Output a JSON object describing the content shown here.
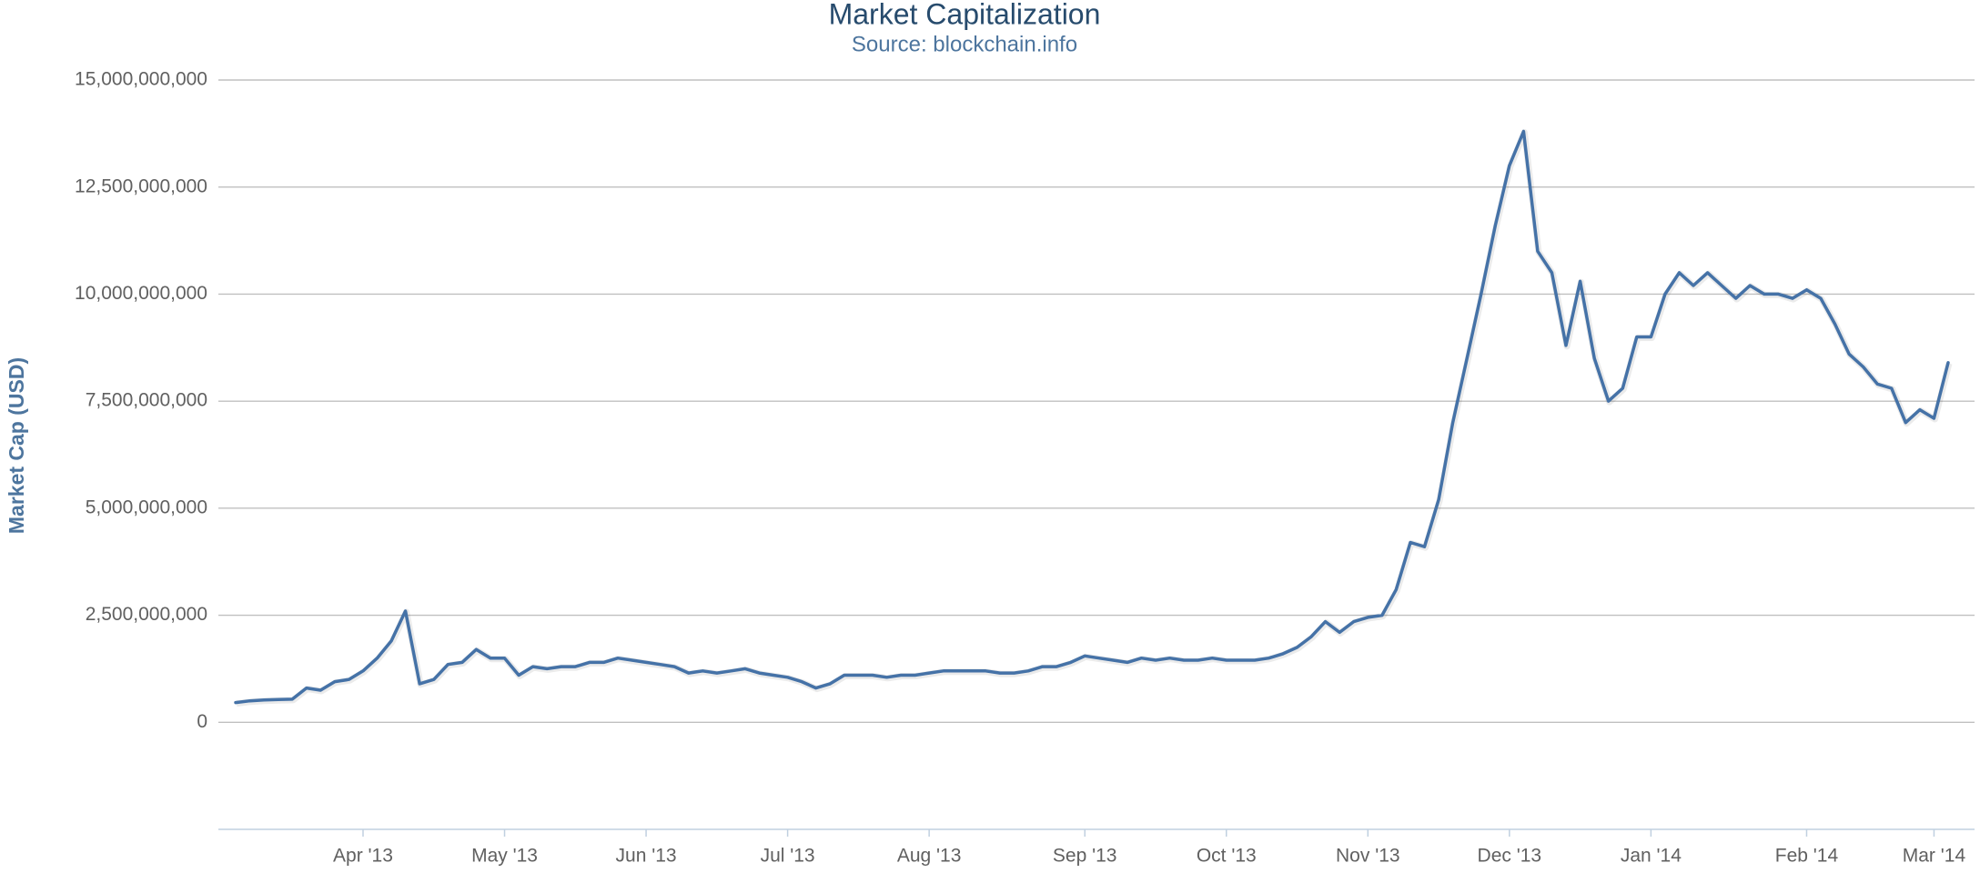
{
  "chart_data": {
    "type": "line",
    "title": "Market Capitalization",
    "subtitle": "Source: blockchain.info",
    "y_label": "Market Cap (USD)",
    "color": "#4572a7",
    "grid": true,
    "ylim": [
      -2500000000,
      15000000000
    ],
    "yticks": [
      0,
      {
        "value": 2500000000,
        "label": "2,500,000,000"
      },
      {
        "value": 5000000000,
        "label": "5,000,000,000"
      },
      {
        "value": 7500000000,
        "label": "7,500,000,000"
      },
      {
        "value": 10000000000,
        "label": "10,000,000,000"
      },
      {
        "value": 12500000000,
        "label": "12,500,000,000"
      },
      {
        "value": 15000000000,
        "label": "15,000,000,000"
      }
    ],
    "categories": [
      null,
      null,
      null,
      null,
      null,
      null,
      null,
      null,
      null,
      "Apr '13",
      null,
      null,
      null,
      null,
      null,
      null,
      null,
      null,
      null,
      "May '13",
      null,
      null,
      null,
      null,
      null,
      null,
      null,
      null,
      null,
      "Jun '13",
      null,
      null,
      null,
      null,
      null,
      null,
      null,
      null,
      null,
      "Jul '13",
      null,
      null,
      null,
      null,
      null,
      null,
      null,
      null,
      null,
      "Aug '13",
      null,
      null,
      null,
      null,
      null,
      null,
      null,
      null,
      null,
      null,
      "Sep '13",
      null,
      null,
      null,
      null,
      null,
      null,
      null,
      null,
      null,
      "Oct '13",
      null,
      null,
      null,
      null,
      null,
      null,
      null,
      null,
      null,
      "Nov '13",
      null,
      null,
      null,
      null,
      null,
      null,
      null,
      null,
      null,
      "Dec '13",
      null,
      null,
      null,
      null,
      null,
      null,
      null,
      null,
      null,
      "Jan '14",
      null,
      null,
      null,
      null,
      null,
      null,
      null,
      null,
      null,
      null,
      "Feb '14",
      null,
      null,
      null,
      null,
      null,
      null,
      null,
      null,
      "Mar '14",
      null
    ],
    "values": [
      460000000,
      500000000,
      520000000,
      530000000,
      540000000,
      800000000,
      750000000,
      950000000,
      1000000000,
      1200000000,
      1500000000,
      1900000000,
      2600000000,
      900000000,
      1000000000,
      1350000000,
      1400000000,
      1700000000,
      1500000000,
      1500000000,
      1100000000,
      1300000000,
      1250000000,
      1300000000,
      1300000000,
      1400000000,
      1400000000,
      1500000000,
      1450000000,
      1400000000,
      1350000000,
      1300000000,
      1150000000,
      1200000000,
      1150000000,
      1200000000,
      1250000000,
      1150000000,
      1100000000,
      1050000000,
      950000000,
      800000000,
      900000000,
      1100000000,
      1100000000,
      1100000000,
      1050000000,
      1100000000,
      1100000000,
      1150000000,
      1200000000,
      1200000000,
      1200000000,
      1200000000,
      1150000000,
      1150000000,
      1200000000,
      1300000000,
      1300000000,
      1400000000,
      1550000000,
      1500000000,
      1450000000,
      1400000000,
      1500000000,
      1450000000,
      1500000000,
      1450000000,
      1450000000,
      1500000000,
      1450000000,
      1450000000,
      1450000000,
      1500000000,
      1600000000,
      1750000000,
      2000000000,
      2350000000,
      2100000000,
      2350000000,
      2450000000,
      2500000000,
      3100000000,
      4200000000,
      4100000000,
      5200000000,
      7000000000,
      8500000000,
      10000000000,
      11600000000,
      13000000000,
      13800000000,
      11000000000,
      10500000000,
      8800000000,
      10300000000,
      8500000000,
      7500000000,
      7800000000,
      9000000000,
      9000000000,
      10000000000,
      10500000000,
      10200000000,
      10500000000,
      10200000000,
      9900000000,
      10200000000,
      10000000000,
      10000000000,
      9900000000,
      10100000000,
      9900000000,
      9300000000,
      8600000000,
      8300000000,
      7900000000,
      7800000000,
      7000000000,
      7300000000,
      7100000000,
      8400000000
    ]
  }
}
